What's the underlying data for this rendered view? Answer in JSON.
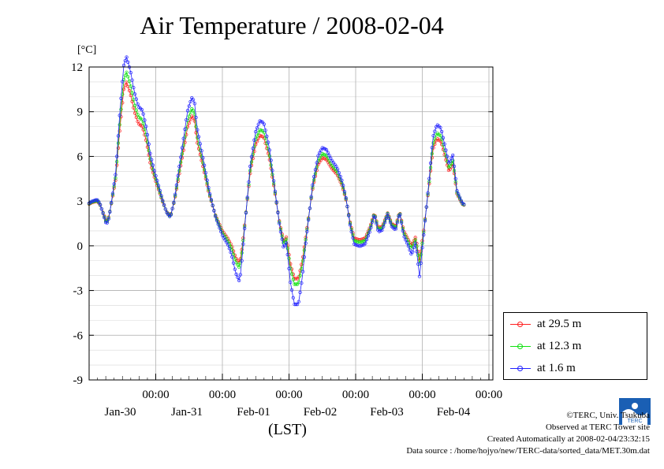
{
  "chart_data": {
    "type": "line",
    "title": "Air Temperature / 2008-02-04",
    "ylabel": "[°C]",
    "xlabel": "(LST)",
    "ylim": [
      -9,
      12
    ],
    "yticks": [
      12,
      9,
      6,
      3,
      0,
      -3,
      -6,
      -9
    ],
    "xticks": [
      {
        "time": "00:00",
        "date": "Jan-30",
        "day": 1
      },
      {
        "time": "00:00",
        "date": "Jan-31",
        "day": 2
      },
      {
        "time": "00:00",
        "date": "Feb-01",
        "day": 3
      },
      {
        "time": "00:00",
        "date": "Feb-02",
        "day": 4
      },
      {
        "time": "00:00",
        "date": "Feb-03",
        "day": 5
      },
      {
        "time": "00:00",
        "date": "Feb-04",
        "day": 6
      }
    ],
    "xlim_days": [
      0,
      6
    ],
    "series_keys": [
      [
        0,
        2.8
      ],
      [
        0.04,
        2.9
      ],
      [
        0.12,
        3.0
      ],
      [
        0.16,
        2.8
      ],
      [
        0.22,
        2.1
      ],
      [
        0.26,
        1.6
      ],
      [
        0.3,
        2.0
      ],
      [
        0.34,
        3.0
      ],
      [
        0.4,
        4.5
      ],
      [
        0.46,
        7.8
      ],
      [
        0.52,
        10.5
      ],
      [
        0.56,
        11.0
      ],
      [
        0.62,
        10.2
      ],
      [
        0.68,
        9.0
      ],
      [
        0.74,
        8.2
      ],
      [
        0.8,
        8.0
      ],
      [
        0.86,
        7.0
      ],
      [
        0.92,
        5.5
      ],
      [
        0.98,
        4.6
      ],
      [
        1.04,
        3.8
      ],
      [
        1.1,
        3.0
      ],
      [
        1.16,
        2.3
      ],
      [
        1.22,
        2.0
      ],
      [
        1.28,
        3.0
      ],
      [
        1.34,
        4.5
      ],
      [
        1.42,
        6.5
      ],
      [
        1.48,
        8.0
      ],
      [
        1.54,
        8.7
      ],
      [
        1.58,
        8.5
      ],
      [
        1.62,
        7.0
      ],
      [
        1.7,
        5.5
      ],
      [
        1.8,
        3.5
      ],
      [
        1.9,
        2.0
      ],
      [
        2.0,
        1.0
      ],
      [
        2.08,
        0.5
      ],
      [
        2.14,
        0.0
      ],
      [
        2.2,
        -0.8
      ],
      [
        2.26,
        -1.2
      ],
      [
        2.3,
        0.0
      ],
      [
        2.36,
        2.5
      ],
      [
        2.42,
        5.0
      ],
      [
        2.5,
        6.8
      ],
      [
        2.56,
        7.4
      ],
      [
        2.62,
        7.3
      ],
      [
        2.7,
        6.0
      ],
      [
        2.78,
        3.8
      ],
      [
        2.86,
        1.5
      ],
      [
        2.92,
        0.3
      ],
      [
        2.96,
        0.6
      ],
      [
        3.02,
        -1.2
      ],
      [
        3.08,
        -2.2
      ],
      [
        3.14,
        -2.2
      ],
      [
        3.2,
        -1.0
      ],
      [
        3.28,
        1.5
      ],
      [
        3.36,
        4.0
      ],
      [
        3.44,
        5.5
      ],
      [
        3.5,
        5.9
      ],
      [
        3.56,
        5.8
      ],
      [
        3.64,
        5.2
      ],
      [
        3.72,
        4.8
      ],
      [
        3.8,
        4.0
      ],
      [
        3.86,
        3.0
      ],
      [
        3.92,
        1.5
      ],
      [
        3.98,
        0.5
      ],
      [
        4.06,
        0.4
      ],
      [
        4.14,
        0.5
      ],
      [
        4.22,
        1.3
      ],
      [
        4.28,
        2.2
      ],
      [
        4.34,
        1.2
      ],
      [
        4.4,
        1.3
      ],
      [
        4.48,
        2.2
      ],
      [
        4.54,
        1.5
      ],
      [
        4.6,
        1.3
      ],
      [
        4.66,
        2.3
      ],
      [
        4.72,
        1.0
      ],
      [
        4.78,
        0.5
      ],
      [
        4.84,
        0.0
      ],
      [
        4.9,
        0.6
      ],
      [
        4.96,
        -1.0
      ],
      [
        5.02,
        1.0
      ],
      [
        5.1,
        4.0
      ],
      [
        5.16,
        6.5
      ],
      [
        5.22,
        7.2
      ],
      [
        5.28,
        7.0
      ],
      [
        5.34,
        6.0
      ],
      [
        5.4,
        5.0
      ],
      [
        5.46,
        5.5
      ],
      [
        5.52,
        3.5
      ],
      [
        5.6,
        2.8
      ],
      [
        5.64,
        2.7
      ]
    ],
    "series": [
      {
        "name": "at 29.5 m",
        "color": "#ff2020",
        "offsets": [],
        "scale": 1.0
      },
      {
        "name": "at 12.3 m",
        "color": "#10e010",
        "scale": 1.08
      },
      {
        "name": "at 1.6 m",
        "color": "#2020ff",
        "scale": 1.2
      }
    ],
    "grid": true,
    "legend_position": "right"
  },
  "credits": {
    "line1": "©TERC, Univ. Tsukuba",
    "line2": "Observed at TERC Tower site",
    "line3": "Created Automatically at 2008-02-04/23:32:15",
    "line4": "Data source : /home/hojyo/new/TERC-data/sorted_data/MET.30m.dat"
  },
  "logo_text": "TERC"
}
